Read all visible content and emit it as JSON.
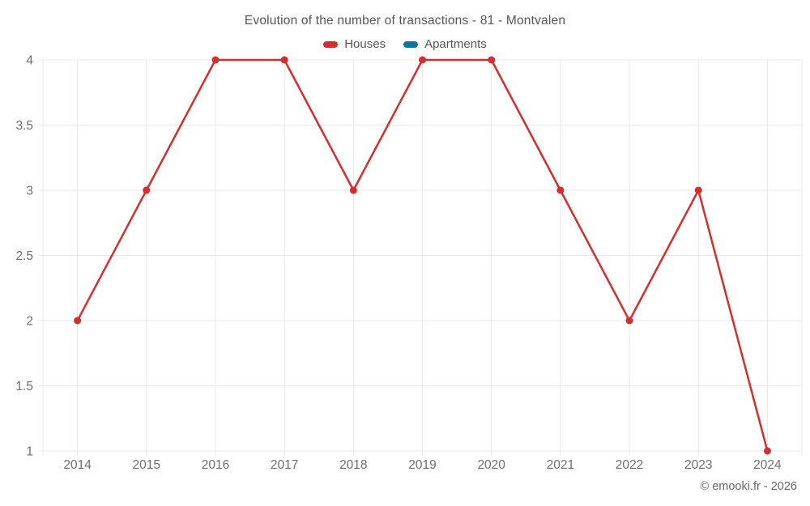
{
  "watermark": "© emooki.fr - 2026",
  "colors": {
    "grid": "#e9e9e9",
    "tick_text": "#6e6e6e",
    "title_text": "#555555"
  },
  "chart_data": {
    "type": "line",
    "title": "Evolution of the number of transactions - 81 - Montvalen",
    "categories": [
      "2014",
      "2015",
      "2016",
      "2017",
      "2018",
      "2019",
      "2020",
      "2021",
      "2022",
      "2023",
      "2024"
    ],
    "series": [
      {
        "name": "Houses",
        "color": "#d32f2f",
        "values": [
          2,
          3,
          4,
          4,
          3,
          4,
          4,
          3,
          2,
          3,
          1
        ]
      },
      {
        "name": "Apartments",
        "color": "#1273a0",
        "values": []
      }
    ],
    "xlabel": "",
    "ylabel": "",
    "ylim": [
      1,
      4
    ],
    "yticks": [
      1,
      1.5,
      2,
      2.5,
      3,
      3.5,
      4
    ],
    "grid": true,
    "legend_position": "top",
    "point_radius": 4.5,
    "line_width": 2.5
  }
}
